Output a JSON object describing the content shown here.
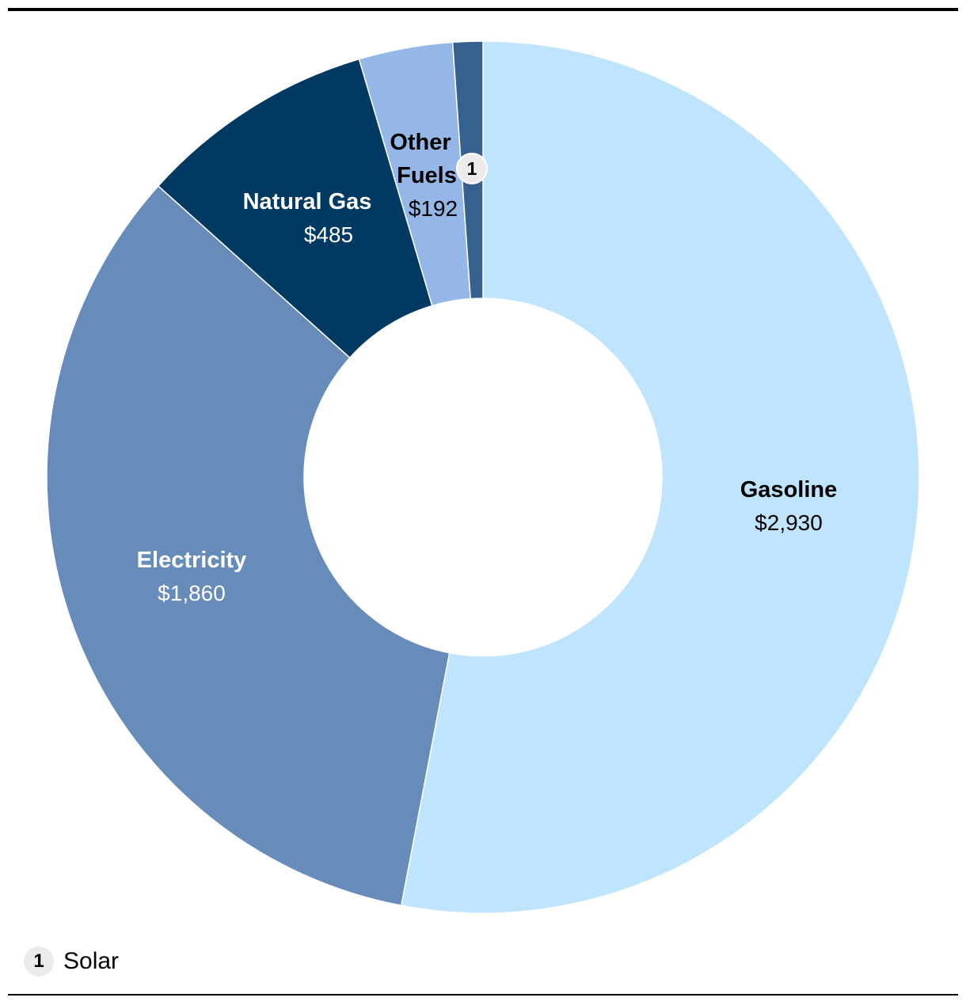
{
  "chart_data": {
    "type": "pie",
    "variant": "donut",
    "slices": [
      {
        "key": "gasoline",
        "label": "Gasoline",
        "value": 2930,
        "value_label": "$2,930",
        "color": "#bfe4fd"
      },
      {
        "key": "electricity",
        "label": "Electricity",
        "value": 1860,
        "value_label": "$1,860",
        "color": "#678cba"
      },
      {
        "key": "natural_gas",
        "label": "Natural Gas",
        "value": 485,
        "value_label": "$485",
        "color": "#003a63"
      },
      {
        "key": "other_fuels",
        "label": "Other Fuels",
        "value": 192,
        "value_label": "$192",
        "color": "#94b7e8"
      },
      {
        "key": "solar",
        "label": "Solar",
        "marker": "1",
        "color": "#36618f"
      }
    ],
    "footnote": {
      "marker": "1",
      "label": "Solar"
    }
  }
}
